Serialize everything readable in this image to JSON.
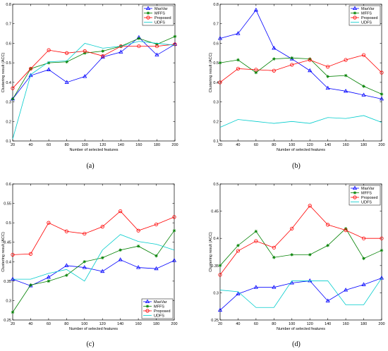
{
  "chart_data": [
    {
      "panel_label": "(a)",
      "type": "line",
      "xlabel": "Number of selected features",
      "ylabel": "Clustering result (ACC)",
      "x": [
        20,
        40,
        60,
        80,
        100,
        120,
        140,
        160,
        180,
        200
      ],
      "xlim": [
        20,
        200
      ],
      "ylim": [
        0.1,
        0.8
      ],
      "yticks": [
        0.1,
        0.2,
        0.3,
        0.4,
        0.5,
        0.6,
        0.7,
        0.8
      ],
      "yticklabels": [
        "0.1",
        "0.2",
        "0.3",
        "0.4",
        "0.5",
        "0.6",
        "0.7",
        "0.8"
      ],
      "legend": "top-right",
      "series": [
        {
          "name": "MaxVar",
          "color": "#0000ff",
          "marker": "triangle",
          "values": [
            0.315,
            0.435,
            0.465,
            0.4,
            0.43,
            0.53,
            0.555,
            0.63,
            0.54,
            0.595
          ]
        },
        {
          "name": "MFFS",
          "color": "#008000",
          "marker": "star",
          "values": [
            0.315,
            0.47,
            0.5,
            0.505,
            0.55,
            0.56,
            0.585,
            0.625,
            0.595,
            0.635
          ]
        },
        {
          "name": "Proposed",
          "color": "#ff0000",
          "marker": "circle",
          "values": [
            0.37,
            0.47,
            0.565,
            0.55,
            0.56,
            0.535,
            0.585,
            0.585,
            0.585,
            0.595
          ]
        },
        {
          "name": "UDFS",
          "color": "#00cccc",
          "marker": "none",
          "values": [
            0.11,
            0.44,
            0.505,
            0.51,
            0.6,
            0.575,
            0.585,
            0.61,
            0.6,
            0.59
          ]
        }
      ]
    },
    {
      "panel_label": "(b)",
      "type": "line",
      "xlabel": "Number of selected features",
      "ylabel": "Clustering result (ACC)",
      "x": [
        20,
        40,
        60,
        80,
        100,
        120,
        140,
        160,
        180,
        200
      ],
      "xlim": [
        20,
        200
      ],
      "ylim": [
        0.1,
        0.8
      ],
      "yticks": [
        0.1,
        0.2,
        0.3,
        0.4,
        0.5,
        0.6,
        0.7,
        0.8
      ],
      "yticklabels": [
        "0.1",
        "0.2",
        "0.3",
        "0.4",
        "0.5",
        "0.6",
        "0.7",
        "0.8"
      ],
      "legend": "top-right",
      "series": [
        {
          "name": "MaxVar",
          "color": "#0000ff",
          "marker": "triangle",
          "values": [
            0.625,
            0.65,
            0.77,
            0.575,
            0.52,
            0.46,
            0.37,
            0.355,
            0.335,
            0.315
          ]
        },
        {
          "name": "MFFS",
          "color": "#008000",
          "marker": "star",
          "values": [
            0.5,
            0.515,
            0.45,
            0.52,
            0.525,
            0.52,
            0.43,
            0.435,
            0.38,
            0.34
          ]
        },
        {
          "name": "Proposed",
          "color": "#ff0000",
          "marker": "circle",
          "values": [
            0.4,
            0.47,
            0.465,
            0.46,
            0.49,
            0.515,
            0.48,
            0.515,
            0.54,
            0.45
          ]
        },
        {
          "name": "UDFS",
          "color": "#00cccc",
          "marker": "none",
          "values": [
            0.17,
            0.21,
            0.2,
            0.19,
            0.2,
            0.19,
            0.22,
            0.215,
            0.23,
            0.195
          ]
        }
      ]
    },
    {
      "panel_label": "(c)",
      "type": "line",
      "xlabel": "Number of selected features",
      "ylabel": "Clustering result (ACC)",
      "x": [
        20,
        40,
        60,
        80,
        100,
        120,
        140,
        160,
        180,
        200
      ],
      "xlim": [
        20,
        200
      ],
      "ylim": [
        0.25,
        0.6
      ],
      "yticks": [
        0.25,
        0.3,
        0.35,
        0.4,
        0.45,
        0.5,
        0.55,
        0.6
      ],
      "yticklabels": [
        "0.25",
        "0.3",
        "0.35",
        "0.4",
        "0.45",
        "0.5",
        "0.55",
        "0.6"
      ],
      "legend": "bottom-right",
      "series": [
        {
          "name": "MaxVar",
          "color": "#0000ff",
          "marker": "triangle",
          "values": [
            0.355,
            0.338,
            0.36,
            0.39,
            0.385,
            0.375,
            0.405,
            0.385,
            0.382,
            0.403
          ]
        },
        {
          "name": "MFFS",
          "color": "#008000",
          "marker": "star",
          "values": [
            0.27,
            0.34,
            0.35,
            0.365,
            0.4,
            0.41,
            0.43,
            0.44,
            0.415,
            0.48
          ]
        },
        {
          "name": "Proposed",
          "color": "#ff0000",
          "marker": "circle",
          "values": [
            0.418,
            0.42,
            0.5,
            0.478,
            0.472,
            0.49,
            0.53,
            0.48,
            0.496,
            0.515
          ]
        },
        {
          "name": "UDFS",
          "color": "#00cccc",
          "marker": "none",
          "values": [
            0.355,
            0.355,
            0.37,
            0.38,
            0.35,
            0.43,
            0.47,
            0.452,
            0.445,
            0.43
          ]
        }
      ]
    },
    {
      "panel_label": "(d)",
      "type": "line",
      "xlabel": "Number of selected features",
      "ylabel": "Clustering result (ACC)",
      "x": [
        20,
        40,
        60,
        80,
        100,
        120,
        140,
        160,
        180,
        200
      ],
      "xlim": [
        20,
        200
      ],
      "ylim": [
        0.25,
        0.5
      ],
      "yticks": [
        0.25,
        0.3,
        0.35,
        0.4,
        0.45,
        0.5
      ],
      "yticklabels": [
        "0.25",
        "0.3",
        "0.35",
        "0.4",
        "0.45",
        "0.5"
      ],
      "legend": "top-right",
      "series": [
        {
          "name": "MaxVar",
          "color": "#0000ff",
          "marker": "triangle",
          "values": [
            0.268,
            0.298,
            0.31,
            0.31,
            0.318,
            0.322,
            0.285,
            0.305,
            0.315,
            0.327
          ]
        },
        {
          "name": "MFFS",
          "color": "#008000",
          "marker": "star",
          "values": [
            0.35,
            0.387,
            0.413,
            0.365,
            0.37,
            0.37,
            0.387,
            0.418,
            0.363,
            0.378
          ]
        },
        {
          "name": "Proposed",
          "color": "#ff0000",
          "marker": "circle",
          "values": [
            0.333,
            0.377,
            0.395,
            0.383,
            0.418,
            0.46,
            0.425,
            0.415,
            0.4,
            0.4
          ]
        },
        {
          "name": "UDFS",
          "color": "#00cccc",
          "marker": "none",
          "values": [
            0.305,
            0.302,
            0.273,
            0.273,
            0.322,
            0.322,
            0.322,
            0.278,
            0.278,
            0.327
          ]
        }
      ]
    }
  ]
}
